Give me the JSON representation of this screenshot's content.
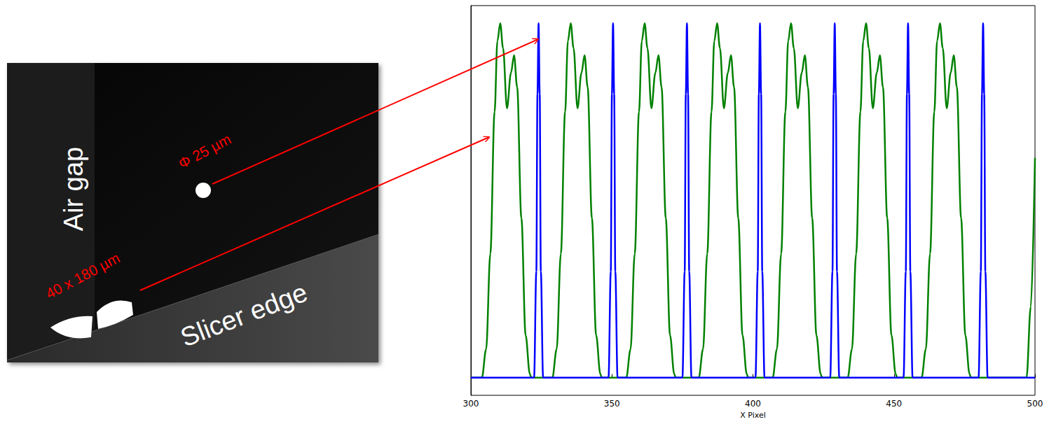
{
  "image": {
    "labels": [
      "Air gap",
      "Φ 25 µm",
      "40 x 180 µm",
      "Slicer edge"
    ]
  },
  "chart_data": {
    "type": "line",
    "x_label": "X Pixel",
    "xlim": [
      300,
      500
    ],
    "xticks": [
      300,
      350,
      400,
      450,
      500
    ],
    "ylim": [
      -0.05,
      1.05
    ],
    "tick_labels": "x",
    "grid": false,
    "series": [
      {
        "color": "#008000",
        "x": [
          300,
          303.9,
          305.4,
          306.9,
          308.4,
          309.4,
          310.4,
          311.4,
          312.8,
          314.2,
          315.3,
          316.4,
          317.9,
          319.4,
          320.9,
          321.4,
          328.9,
          330.4,
          331.9,
          333.4,
          334.4,
          335.4,
          336.4,
          337.8,
          339.2,
          340.3,
          341.4,
          342.9,
          344.4,
          345.9,
          346.4,
          355.1,
          356.6,
          358.1,
          359.6,
          360.6,
          361.6,
          362.6,
          364.0,
          365.4,
          366.5,
          367.6,
          369.1,
          370.6,
          372.1,
          372.6,
          380.8,
          382.3,
          383.8,
          385.3,
          386.3,
          387.3,
          388.3,
          389.7,
          391.1,
          392.2,
          393.3,
          394.8,
          396.3,
          397.8,
          398.3,
          407.0,
          408.5,
          410.0,
          411.5,
          412.5,
          413.5,
          414.5,
          415.9,
          417.3,
          418.4,
          419.5,
          421.0,
          422.5,
          424.0,
          424.5,
          433.6,
          435.1,
          436.6,
          438.1,
          439.1,
          440.1,
          441.1,
          442.5,
          443.9,
          445.0,
          446.1,
          447.6,
          449.1,
          450.6,
          451.1,
          459.8,
          461.3,
          462.8,
          464.3,
          465.3,
          466.3,
          467.3,
          468.7,
          470.1,
          471.2,
          472.3,
          473.8,
          475.3,
          476.8,
          477.3,
          497,
          498.5,
          500
        ],
        "values": [
          0,
          0,
          0.08,
          0.35,
          0.75,
          0.95,
          1,
          0.93,
          0.76,
          0.86,
          0.91,
          0.82,
          0.45,
          0.12,
          0.01,
          0,
          0,
          0.08,
          0.35,
          0.75,
          0.95,
          1,
          0.93,
          0.76,
          0.86,
          0.91,
          0.82,
          0.45,
          0.12,
          0.01,
          0,
          0,
          0.08,
          0.35,
          0.75,
          0.95,
          1,
          0.93,
          0.76,
          0.86,
          0.91,
          0.82,
          0.45,
          0.12,
          0.01,
          0,
          0,
          0.08,
          0.35,
          0.75,
          0.95,
          1,
          0.93,
          0.76,
          0.86,
          0.91,
          0.82,
          0.45,
          0.12,
          0.01,
          0,
          0,
          0.08,
          0.35,
          0.75,
          0.95,
          1,
          0.93,
          0.76,
          0.86,
          0.91,
          0.82,
          0.45,
          0.12,
          0.01,
          0,
          0,
          0.08,
          0.35,
          0.75,
          0.95,
          1,
          0.93,
          0.76,
          0.86,
          0.91,
          0.82,
          0.45,
          0.12,
          0.01,
          0,
          0,
          0.08,
          0.35,
          0.75,
          0.95,
          1,
          0.93,
          0.76,
          0.86,
          0.91,
          0.82,
          0.45,
          0.12,
          0.01,
          0,
          0,
          0.2,
          0.62
        ]
      },
      {
        "color": "#0000ff",
        "x": [
          300,
          322.4,
          323.2,
          323.6,
          324,
          324.4,
          324.8,
          325.6,
          348.8,
          349.6,
          350.0,
          350.4,
          350.8,
          351.2,
          352.0,
          375.0,
          375.8,
          376.2,
          376.6,
          377.0,
          377.4,
          378.2,
          400.9,
          401.7,
          402.1,
          402.5,
          402.9,
          403.3,
          404.1,
          427.4,
          428.2,
          428.6,
          429,
          429.4,
          429.8,
          430.6,
          453.4,
          454.2,
          454.6,
          455,
          455.4,
          455.8,
          456.6,
          480.0,
          480.8,
          481.2,
          481.6,
          482.0,
          482.4,
          483.2,
          500
        ],
        "values": [
          0,
          0,
          0.3,
          0.8,
          1,
          0.8,
          0.3,
          0,
          0,
          0.3,
          0.8,
          1,
          0.8,
          0.3,
          0,
          0,
          0.3,
          0.8,
          1,
          0.8,
          0.3,
          0,
          0,
          0.3,
          0.8,
          1,
          0.8,
          0.3,
          0,
          0,
          0.3,
          0.8,
          1,
          0.8,
          0.3,
          0,
          0,
          0.3,
          0.8,
          1,
          0.8,
          0.3,
          0,
          0,
          0.3,
          0.8,
          1,
          0.8,
          0.3,
          0,
          0
        ]
      }
    ]
  }
}
